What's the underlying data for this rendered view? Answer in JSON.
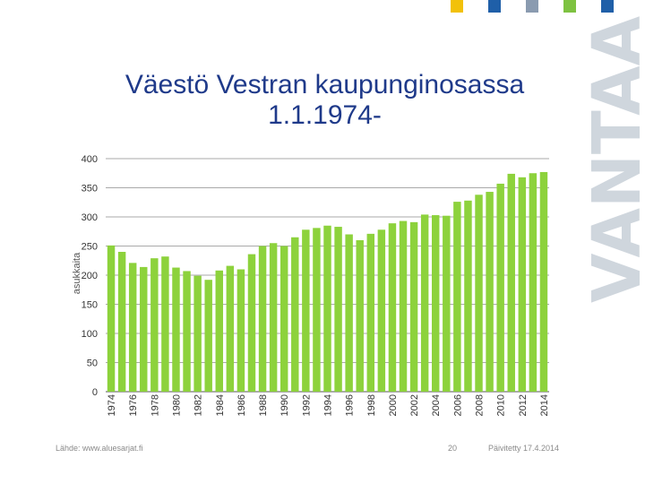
{
  "brand": {
    "text": "VANTAA",
    "color": "#cfd6dd"
  },
  "title": {
    "line1": "Väestö Vestran kaupunginosassa",
    "line2": "1.1.1974-"
  },
  "footer": {
    "source": "Lähde: www.aluesarjat.fi",
    "page": "20",
    "updated": "Päivitetty 17.4.2014"
  },
  "colors": {
    "bar": "#8dd23c",
    "title": "#1f3a8a",
    "decor": [
      "#f2c10a",
      "#1f5fa8",
      "#8a9bb0",
      "#7ec241",
      "#1f5fa8"
    ]
  },
  "chart_data": {
    "type": "bar",
    "title": "",
    "xlabel": "",
    "ylabel": "asukkaita",
    "ylim": [
      0,
      400
    ],
    "yticks": [
      0,
      50,
      100,
      150,
      200,
      250,
      300,
      350,
      400
    ],
    "grid": true,
    "legend": "none",
    "categories": [
      "1974",
      "1975",
      "1976",
      "1977",
      "1978",
      "1979",
      "1980",
      "1981",
      "1982",
      "1983",
      "1984",
      "1985",
      "1986",
      "1987",
      "1988",
      "1989",
      "1990",
      "1991",
      "1992",
      "1993",
      "1994",
      "1995",
      "1996",
      "1997",
      "1998",
      "1999",
      "2000",
      "2001",
      "2002",
      "2003",
      "2004",
      "2005",
      "2006",
      "2007",
      "2008",
      "2009",
      "2010",
      "2011",
      "2012",
      "2013",
      "2014"
    ],
    "tick_labels": [
      "1974",
      "1976",
      "1978",
      "1980",
      "1982",
      "1984",
      "1986",
      "1988",
      "1990",
      "1992",
      "1994",
      "1996",
      "1998",
      "2000",
      "2002",
      "2004",
      "2006",
      "2008",
      "2010",
      "2012",
      "2014"
    ],
    "values": [
      251,
      240,
      221,
      214,
      229,
      232,
      213,
      207,
      199,
      192,
      208,
      216,
      210,
      236,
      250,
      255,
      250,
      265,
      278,
      281,
      285,
      283,
      270,
      260,
      271,
      278,
      289,
      293,
      291,
      304,
      303,
      302,
      326,
      328,
      338,
      343,
      357,
      374,
      368,
      375,
      377
    ]
  }
}
